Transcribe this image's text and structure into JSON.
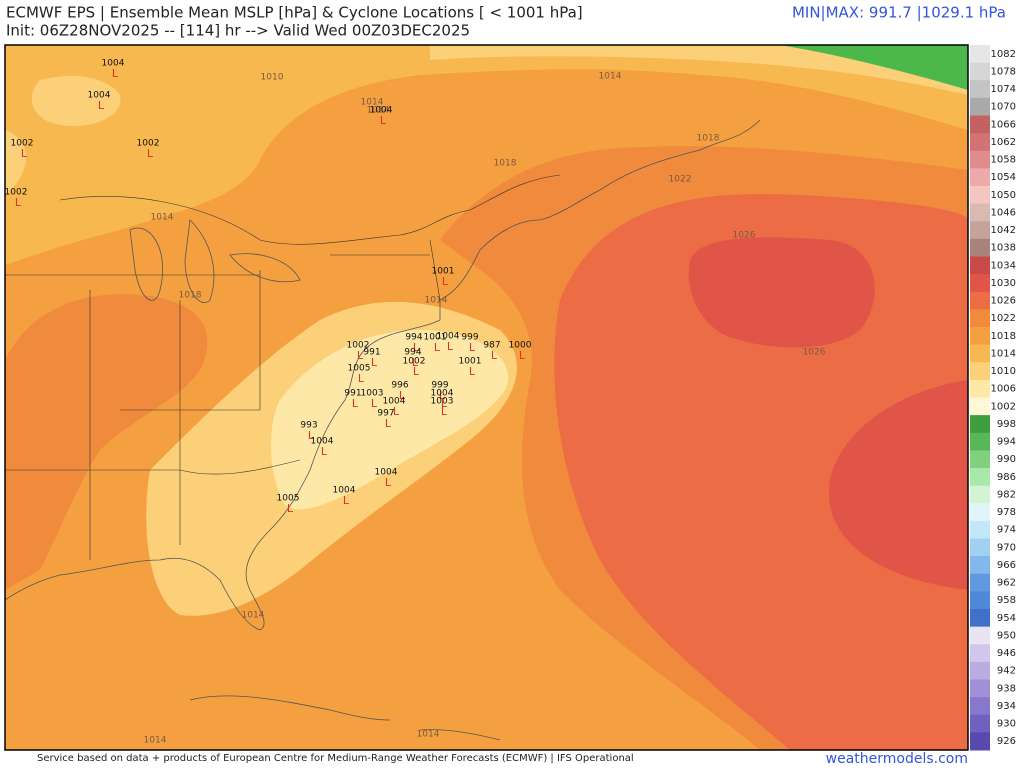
{
  "header": {
    "title": "ECMWF EPS | Ensemble Mean MSLP [hPa] & Cyclone Locations [ < 1001 hPa]",
    "subtitle": "Init: 06Z28NOV2025 -- [114] hr --> Valid Wed 00Z03DEC2025",
    "minmax": "MIN|MAX: 991.7 |1029.1 hPa"
  },
  "colorbar": [
    {
      "label": "1082",
      "color": "#e6e6e6"
    },
    {
      "label": "1078",
      "color": "#d6d6d6"
    },
    {
      "label": "1074",
      "color": "#c4c4c4"
    },
    {
      "label": "1070",
      "color": "#a9a9a9"
    },
    {
      "label": "1066",
      "color": "#c46262"
    },
    {
      "label": "1062",
      "color": "#d27272"
    },
    {
      "label": "1058",
      "color": "#e08c8c"
    },
    {
      "label": "1054",
      "color": "#eeaaaa"
    },
    {
      "label": "1050",
      "color": "#f4c6c0"
    },
    {
      "label": "1046",
      "color": "#d9bab2"
    },
    {
      "label": "1042",
      "color": "#c3a39b"
    },
    {
      "label": "1038",
      "color": "#a7837b"
    },
    {
      "label": "1034",
      "color": "#c94a48"
    },
    {
      "label": "1030",
      "color": "#e05548"
    },
    {
      "label": "1026",
      "color": "#ec6c45"
    },
    {
      "label": "1022",
      "color": "#f08a3c"
    },
    {
      "label": "1018",
      "color": "#f5a040"
    },
    {
      "label": "1014",
      "color": "#f8b850"
    },
    {
      "label": "1010",
      "color": "#fbd078"
    },
    {
      "label": "1006",
      "color": "#fde8a8"
    },
    {
      "label": "1002",
      "color": "#fff8d6"
    },
    {
      "label": "998",
      "color": "#3f9f3f"
    },
    {
      "label": "994",
      "color": "#58b858"
    },
    {
      "label": "990",
      "color": "#80d080"
    },
    {
      "label": "986",
      "color": "#a8e8a8"
    },
    {
      "label": "982",
      "color": "#d2f4d2"
    },
    {
      "label": "978",
      "color": "#e2f4fa"
    },
    {
      "label": "974",
      "color": "#c2e8f8"
    },
    {
      "label": "970",
      "color": "#a2d0f0"
    },
    {
      "label": "966",
      "color": "#82b8ec"
    },
    {
      "label": "962",
      "color": "#6298e0"
    },
    {
      "label": "958",
      "color": "#5088d8"
    },
    {
      "label": "954",
      "color": "#4070c8"
    },
    {
      "label": "950",
      "color": "#e8e4f4"
    },
    {
      "label": "946",
      "color": "#d0c8ec"
    },
    {
      "label": "942",
      "color": "#b8ace0"
    },
    {
      "label": "938",
      "color": "#a090d8"
    },
    {
      "label": "934",
      "color": "#8878cc"
    },
    {
      "label": "930",
      "color": "#7060c0"
    },
    {
      "label": "926",
      "color": "#5848b0"
    }
  ],
  "isobars": [
    "1010",
    "1014",
    "1014",
    "1014",
    "1018",
    "1018",
    "1018",
    "1022",
    "1026",
    "1026",
    "1014",
    "1014",
    "1014",
    "1014",
    "1014"
  ],
  "cyclones": [
    "1004",
    "1004",
    "1002",
    "1002",
    "1002",
    "1004",
    "1001",
    "1002",
    "1004",
    "994",
    "1001",
    "999",
    "987",
    "1000",
    "1001",
    "1002",
    "991",
    "994",
    "996",
    "999",
    "1004",
    "1003",
    "991",
    "1003",
    "1004",
    "997",
    "993",
    "1004",
    "1004",
    "1004",
    "1005",
    "1005"
  ],
  "footer": {
    "credit": "Service based on data + products of European Centre for Medium-Range Weather Forecasts (ECMWF) | IFS Operational",
    "site": "weathermodels.com"
  }
}
